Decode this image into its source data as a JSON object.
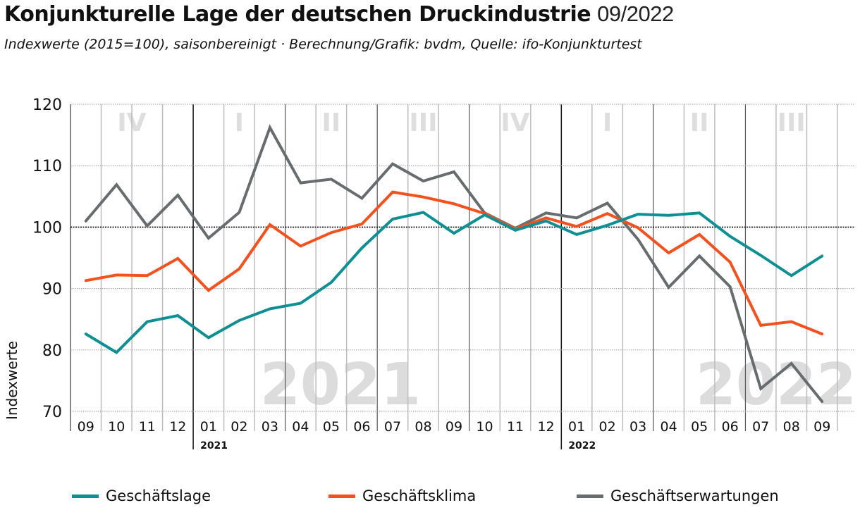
{
  "title": {
    "main": "Konjunkturelle Lage der deutschen Druckindustrie",
    "date": "09/2022"
  },
  "subtitle": "Indexwerte (2015=100), saisonbereinigt · Berechnung/Grafik: bvdm, Quelle: ifo-Konjunkturtest",
  "chart_data": {
    "type": "line",
    "title": "Konjunkturelle Lage der deutschen Druckindustrie 09/2022",
    "subtitle": "Indexwerte (2015=100), saisonbereinigt · Berechnung/Grafik: bvdm, Quelle: ifo-Konjunkturtest",
    "xlabel": "",
    "ylabel": "Indexwerte",
    "ylim": [
      70,
      120
    ],
    "yticks": [
      70,
      80,
      90,
      100,
      110,
      120
    ],
    "reference_line": 100,
    "grid": true,
    "x": [
      "09",
      "10",
      "11",
      "12",
      "01",
      "02",
      "03",
      "04",
      "05",
      "06",
      "07",
      "08",
      "09",
      "10",
      "11",
      "12",
      "01",
      "02",
      "03",
      "04",
      "05",
      "06",
      "07",
      "08",
      "09"
    ],
    "year_labels": [
      {
        "label": "2021",
        "start_index": 4
      },
      {
        "label": "2022",
        "start_index": 16
      }
    ],
    "watermarks": [
      {
        "label": "2021",
        "center_index": 8.3
      },
      {
        "label": "2022",
        "center_index": 22.5
      }
    ],
    "quarters": [
      {
        "label": "IV",
        "start": 0,
        "end": 4
      },
      {
        "label": "I",
        "start": 4,
        "end": 7
      },
      {
        "label": "II",
        "start": 7,
        "end": 10
      },
      {
        "label": "III",
        "start": 10,
        "end": 13
      },
      {
        "label": "IV",
        "start": 13,
        "end": 16
      },
      {
        "label": "I",
        "start": 16,
        "end": 19
      },
      {
        "label": "II",
        "start": 19,
        "end": 22
      },
      {
        "label": "III",
        "start": 22,
        "end": 25
      }
    ],
    "series": [
      {
        "name": "Geschäftslage",
        "color": "#0e8f93",
        "values": [
          82.6,
          79.6,
          84.6,
          85.6,
          82.0,
          84.8,
          86.7,
          87.6,
          91.0,
          96.6,
          101.3,
          102.4,
          99.0,
          102.0,
          99.5,
          101.0,
          98.8,
          100.3,
          102.1,
          101.9,
          102.3,
          98.5,
          95.4,
          92.1,
          95.3
        ]
      },
      {
        "name": "Geschäftsklima",
        "color": "#f4511e",
        "values": [
          91.3,
          92.2,
          92.1,
          94.9,
          89.7,
          93.2,
          100.4,
          96.9,
          99.1,
          100.5,
          105.7,
          104.9,
          103.8,
          102.2,
          99.7,
          101.5,
          100.1,
          102.2,
          99.9,
          95.8,
          98.8,
          94.3,
          84.0,
          84.6,
          82.6
        ]
      },
      {
        "name": "Geschäftserwartungen",
        "color": "#676c6e",
        "values": [
          101.0,
          106.9,
          100.2,
          105.2,
          98.2,
          102.4,
          116.2,
          107.2,
          107.8,
          104.7,
          110.3,
          107.5,
          109.0,
          102.3,
          99.8,
          102.3,
          101.5,
          103.9,
          98.0,
          90.2,
          95.3,
          90.3,
          73.7,
          77.8,
          71.6
        ]
      }
    ],
    "legend": [
      "Geschäftslage",
      "Geschäftsklima",
      "Geschäftserwartungen"
    ],
    "legend_position": "bottom"
  }
}
